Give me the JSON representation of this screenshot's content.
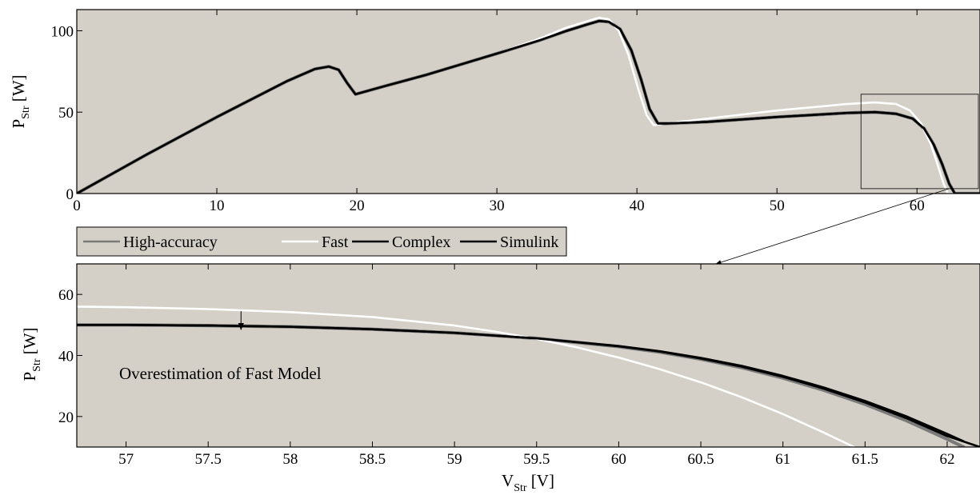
{
  "colors": {
    "plot_bg": "#d4d0c8",
    "frame": "#000000",
    "high_accuracy": "#7a7a7a",
    "fast": "#ffffff",
    "complex": "#000000",
    "simulink": "#000000"
  },
  "legend": {
    "placement": "between-panels-left",
    "items": [
      {
        "label": "High-accuracy",
        "color": "#7a7a7a"
      },
      {
        "label": "Fast",
        "color": "#ffffff"
      },
      {
        "label": "Complex",
        "color": "#000000"
      },
      {
        "label": "Simulink",
        "color": "#000000"
      }
    ]
  },
  "chart_data": [
    {
      "type": "line",
      "panel": "full-curve",
      "xlabel": "",
      "ylabel": {
        "main": "P",
        "sub": "Str",
        "unit": " [W]"
      },
      "xlim": [
        0,
        64.5
      ],
      "ylim": [
        0,
        113
      ],
      "xticks": [
        0,
        10,
        20,
        30,
        40,
        50,
        60
      ],
      "yticks": [
        0,
        50,
        100
      ],
      "grid": false,
      "zoom_box": {
        "x": [
          56,
          64.5
        ],
        "y": [
          3,
          61
        ]
      },
      "series": [
        {
          "name": "High-accuracy",
          "x": [
            0,
            5,
            10,
            15,
            17,
            18,
            18.7,
            19.3,
            19.9,
            22,
            25,
            30,
            33,
            35,
            36.5,
            37.3,
            38,
            38.8,
            39.6,
            40.3,
            40.9,
            41.5,
            42,
            45,
            50,
            55,
            57,
            58.5,
            59.7,
            60.5,
            61.2,
            61.8,
            62.3,
            62.7,
            64.5
          ],
          "y": [
            0,
            24,
            47,
            69,
            76.5,
            78,
            76,
            68,
            61,
            66,
            73,
            86,
            94,
            100,
            104,
            106,
            105.5,
            101,
            88,
            70,
            52,
            43,
            43,
            44,
            47,
            49.5,
            50,
            49,
            46,
            40,
            30,
            18,
            6,
            0,
            0
          ]
        },
        {
          "name": "Fast",
          "x": [
            0,
            5,
            10,
            15,
            17,
            18,
            18.7,
            19.3,
            19.9,
            22,
            25,
            30,
            33,
            35,
            36.5,
            37.3,
            38,
            38.7,
            39.4,
            40.1,
            40.7,
            41.2,
            42,
            45,
            50,
            55,
            57,
            58.5,
            59.5,
            60.3,
            61,
            61.5,
            61.9,
            62.2,
            64.5
          ],
          "y": [
            0,
            24,
            47,
            69,
            76.5,
            78,
            76,
            68,
            61,
            66,
            73,
            86,
            95,
            102,
            106,
            108,
            107,
            100,
            85,
            64,
            48,
            42,
            43,
            46,
            51,
            55,
            56,
            55,
            51,
            43,
            30,
            17,
            6,
            0,
            0
          ]
        },
        {
          "name": "Complex",
          "x": [
            0,
            5,
            10,
            15,
            17,
            18,
            18.7,
            19.3,
            19.9,
            22,
            25,
            30,
            33,
            35,
            36.5,
            37.3,
            38,
            38.8,
            39.6,
            40.3,
            40.9,
            41.5,
            42,
            45,
            50,
            55,
            57,
            58.5,
            59.7,
            60.5,
            61.2,
            61.8,
            62.3,
            62.7,
            64.5
          ],
          "y": [
            0,
            24,
            47,
            69,
            76.5,
            78,
            76,
            68,
            61,
            66,
            73,
            86,
            94,
            100,
            104,
            106,
            105.5,
            101,
            88,
            70,
            52,
            43,
            43,
            44,
            47,
            49.5,
            50,
            49,
            46,
            40,
            30,
            18,
            6,
            0,
            0
          ]
        },
        {
          "name": "Simulink",
          "x": [
            0,
            5,
            10,
            15,
            17,
            18,
            18.7,
            19.3,
            19.9,
            22,
            25,
            30,
            33,
            35,
            36.5,
            37.3,
            38,
            38.8,
            39.6,
            40.3,
            40.9,
            41.5,
            42,
            45,
            50,
            55,
            57,
            58.5,
            59.7,
            60.5,
            61.2,
            61.8,
            62.3,
            62.7,
            64.5
          ],
          "y": [
            0,
            24,
            47,
            69,
            76.5,
            78,
            76,
            68,
            61,
            66,
            73,
            86,
            94,
            100,
            104,
            106,
            105.5,
            101,
            88,
            70,
            52,
            43,
            43,
            44,
            47,
            49.5,
            50,
            49,
            46,
            40,
            30,
            18,
            6,
            0,
            0
          ]
        }
      ]
    },
    {
      "type": "line",
      "panel": "zoom",
      "xlabel": {
        "main": "V",
        "sub": "Str",
        "unit": " [V]"
      },
      "ylabel": {
        "main": "P",
        "sub": "Str",
        "unit": " [W]"
      },
      "xlim": [
        56.7,
        62.2
      ],
      "ylim": [
        10,
        70
      ],
      "xticks": [
        57,
        57.5,
        58,
        58.5,
        59,
        59.5,
        60,
        60.5,
        61,
        61.5,
        62
      ],
      "xtick_labels": [
        "57",
        "57.5",
        "58",
        "58.5",
        "59",
        "59.5",
        "60",
        "60.5",
        "61",
        "61.5",
        "62"
      ],
      "yticks": [
        20,
        40,
        60
      ],
      "grid": false,
      "annotation": {
        "text": "Overestimation of Fast Model",
        "arrow_from": [
          57.7,
          54.5
        ],
        "arrow_to": [
          57.7,
          48.5
        ]
      },
      "series": [
        {
          "name": "High-accuracy",
          "x": [
            56.7,
            57,
            57.5,
            58,
            58.5,
            59,
            59.5,
            60,
            60.25,
            60.5,
            60.75,
            61,
            61.25,
            61.5,
            61.75,
            62,
            62.1
          ],
          "y": [
            50,
            50,
            49.8,
            49.4,
            48.6,
            47.4,
            45.6,
            42.9,
            41.1,
            38.8,
            36,
            32.6,
            28.6,
            24,
            18.7,
            12.6,
            10
          ]
        },
        {
          "name": "Fast",
          "x": [
            56.7,
            57,
            57.5,
            58,
            58.5,
            59,
            59.25,
            59.5,
            59.75,
            60,
            60.25,
            60.5,
            60.75,
            61,
            61.25,
            61.5
          ],
          "y": [
            56,
            55.8,
            55.2,
            54.2,
            52.6,
            49.8,
            47.8,
            45.4,
            42.6,
            39.3,
            35.5,
            31.2,
            26.3,
            20.8,
            14.7,
            8.3
          ]
        },
        {
          "name": "Complex",
          "x": [
            56.7,
            57,
            57.5,
            58,
            58.5,
            59,
            59.5,
            60,
            60.25,
            60.5,
            60.75,
            61,
            61.25,
            61.5,
            61.75,
            62,
            62.1
          ],
          "y": [
            50,
            50,
            49.8,
            49.4,
            48.6,
            47.4,
            45.6,
            43.1,
            41.4,
            39.2,
            36.6,
            33.3,
            29.5,
            25.1,
            20.1,
            14.3,
            11.9
          ]
        },
        {
          "name": "Simulink",
          "x": [
            56.7,
            57,
            57.5,
            58,
            58.5,
            59,
            59.5,
            60,
            60.25,
            60.5,
            60.75,
            61,
            61.25,
            61.5,
            61.75,
            62,
            62.2
          ],
          "y": [
            50,
            50,
            49.8,
            49.4,
            48.6,
            47.4,
            45.6,
            43,
            41.3,
            39,
            36.3,
            33,
            29.1,
            24.6,
            19.5,
            13.6,
            10
          ]
        }
      ]
    }
  ]
}
